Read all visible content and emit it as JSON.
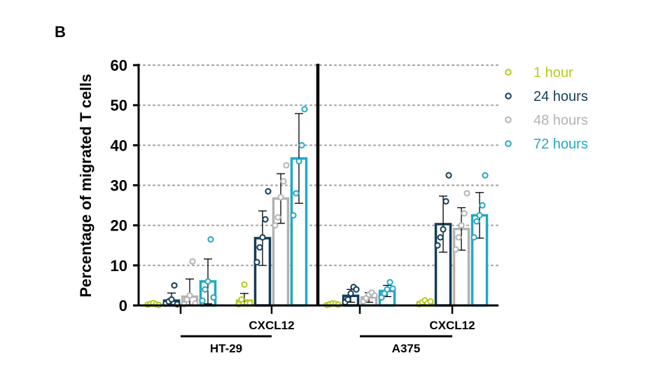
{
  "panel_label": "B",
  "chart_data": {
    "type": "bar",
    "ylabel": "Percentage of migrated T cells",
    "ylim": [
      0,
      60
    ],
    "yticks": [
      0,
      10,
      20,
      30,
      40,
      50,
      60
    ],
    "grid": "dotted horizontal",
    "legend_position": "right",
    "cell_lines": [
      "HT-29",
      "A375"
    ],
    "conditions": [
      "",
      "CXCL12"
    ],
    "treatment_label": "CXCL12",
    "series": [
      {
        "name": "1 hour",
        "color": "#b5cc1a"
      },
      {
        "name": "24 hours",
        "color": "#143d59"
      },
      {
        "name": "48 hours",
        "color": "#b3b3b3"
      },
      {
        "name": "72 hours",
        "color": "#22a8c4"
      }
    ],
    "groups": [
      {
        "cell_line": "HT-29",
        "condition": "",
        "means": [
          0.3,
          1.2,
          2.2,
          6.0
        ],
        "errors": [
          0.5,
          1.9,
          4.4,
          5.6
        ],
        "points": [
          [
            0.2,
            0.4,
            0.6,
            0.3,
            0.1
          ],
          [
            0.5,
            1.0,
            1.5,
            5.0,
            0.3
          ],
          [
            0.3,
            1.5,
            2.5,
            11.0,
            0.5
          ],
          [
            1.2,
            4.0,
            6.0,
            16.5,
            2.0
          ]
        ]
      },
      {
        "cell_line": "HT-29",
        "condition": "CXCL12",
        "means": [
          1.2,
          16.8,
          26.7,
          36.7
        ],
        "errors": [
          1.8,
          6.8,
          6.2,
          11.2
        ],
        "points": [
          [
            0.3,
            1.5,
            5.2,
            0.5,
            0.6
          ],
          [
            10.8,
            14.5,
            17.0,
            21.5,
            28.5
          ],
          [
            20.0,
            22.0,
            27.0,
            31.0,
            35.0
          ],
          [
            22.5,
            28.0,
            36.0,
            40.0,
            49.0
          ]
        ]
      },
      {
        "cell_line": "A375",
        "condition": "",
        "means": [
          0.3,
          2.4,
          2.0,
          3.6
        ],
        "errors": [
          0.4,
          1.6,
          1.2,
          1.4
        ],
        "points": [
          [
            0.1,
            0.3,
            0.5,
            0.4,
            0.2
          ],
          [
            0.8,
            1.5,
            3.0,
            4.6,
            4.0
          ],
          [
            1.0,
            1.8,
            2.7,
            3.2,
            2.5
          ],
          [
            2.0,
            3.0,
            4.0,
            5.8,
            4.2
          ]
        ]
      },
      {
        "cell_line": "A375",
        "condition": "CXCL12",
        "means": [
          0.8,
          20.3,
          19.1,
          22.5
        ],
        "errors": [
          0.4,
          7.0,
          5.3,
          5.7
        ],
        "points": [
          [
            0.3,
            0.8,
            1.3,
            0.6,
            1.0
          ],
          [
            15.0,
            17.0,
            19.0,
            26.0,
            32.5
          ],
          [
            14.0,
            17.0,
            20.0,
            23.0,
            28.0
          ],
          [
            17.0,
            21.0,
            22.5,
            25.0,
            32.5
          ]
        ]
      }
    ]
  }
}
